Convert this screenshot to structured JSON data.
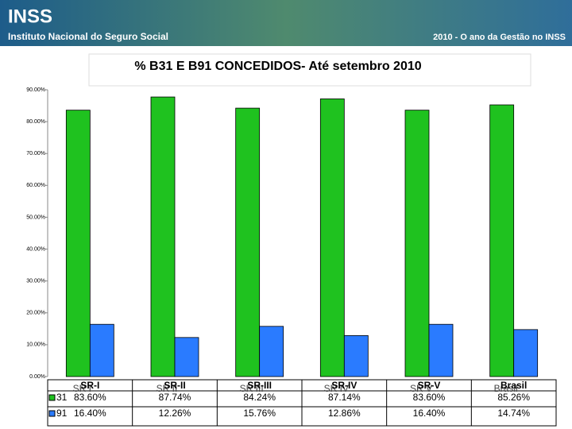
{
  "header": {
    "logo": "INSS",
    "subtitle": "Instituto Nacional do Seguro Social",
    "slogan": "2010 - O ano da Gestão no INSS"
  },
  "chart_data": {
    "type": "bar",
    "title": "% B31 E B91 CONCEDIDOS- Até setembro 2010",
    "categories": [
      "SR-I",
      "SR-II",
      "SR-III",
      "SR-IV",
      "SR-V",
      "Brasil"
    ],
    "category_overlay": [
      "SR I",
      "SR II",
      "SR III",
      "SR IV",
      "SR V",
      "Brasil"
    ],
    "series": [
      {
        "name": "31",
        "color": "#1fc21f",
        "values": [
          83.6,
          87.74,
          84.24,
          87.14,
          83.6,
          85.26
        ],
        "value_labels": [
          "83.60%",
          "87.74%",
          "84.24%",
          "87.14%",
          "83.60%",
          "85.26%"
        ]
      },
      {
        "name": "91",
        "color": "#2a7bff",
        "values": [
          16.4,
          12.26,
          15.76,
          12.86,
          16.4,
          14.74
        ],
        "value_labels": [
          "16.40%",
          "12.26%",
          "15.76%",
          "12.86%",
          "16.40%",
          "14.74%"
        ]
      }
    ],
    "ylim": [
      0,
      90
    ],
    "yticks": [
      {
        "value": 0,
        "label": "0.00%"
      },
      {
        "value": 10,
        "label": "10.00%"
      },
      {
        "value": 20,
        "label": "20.00%"
      },
      {
        "value": 30,
        "label": "30.00%"
      },
      {
        "value": 40,
        "label": "40.00%"
      },
      {
        "value": 50,
        "label": "50.00%"
      },
      {
        "value": 60,
        "label": "60.00%"
      },
      {
        "value": 70,
        "label": "70.00%"
      },
      {
        "value": 80,
        "label": "80.00%"
      },
      {
        "value": 90,
        "label": "90.00%"
      }
    ],
    "grid": false
  }
}
